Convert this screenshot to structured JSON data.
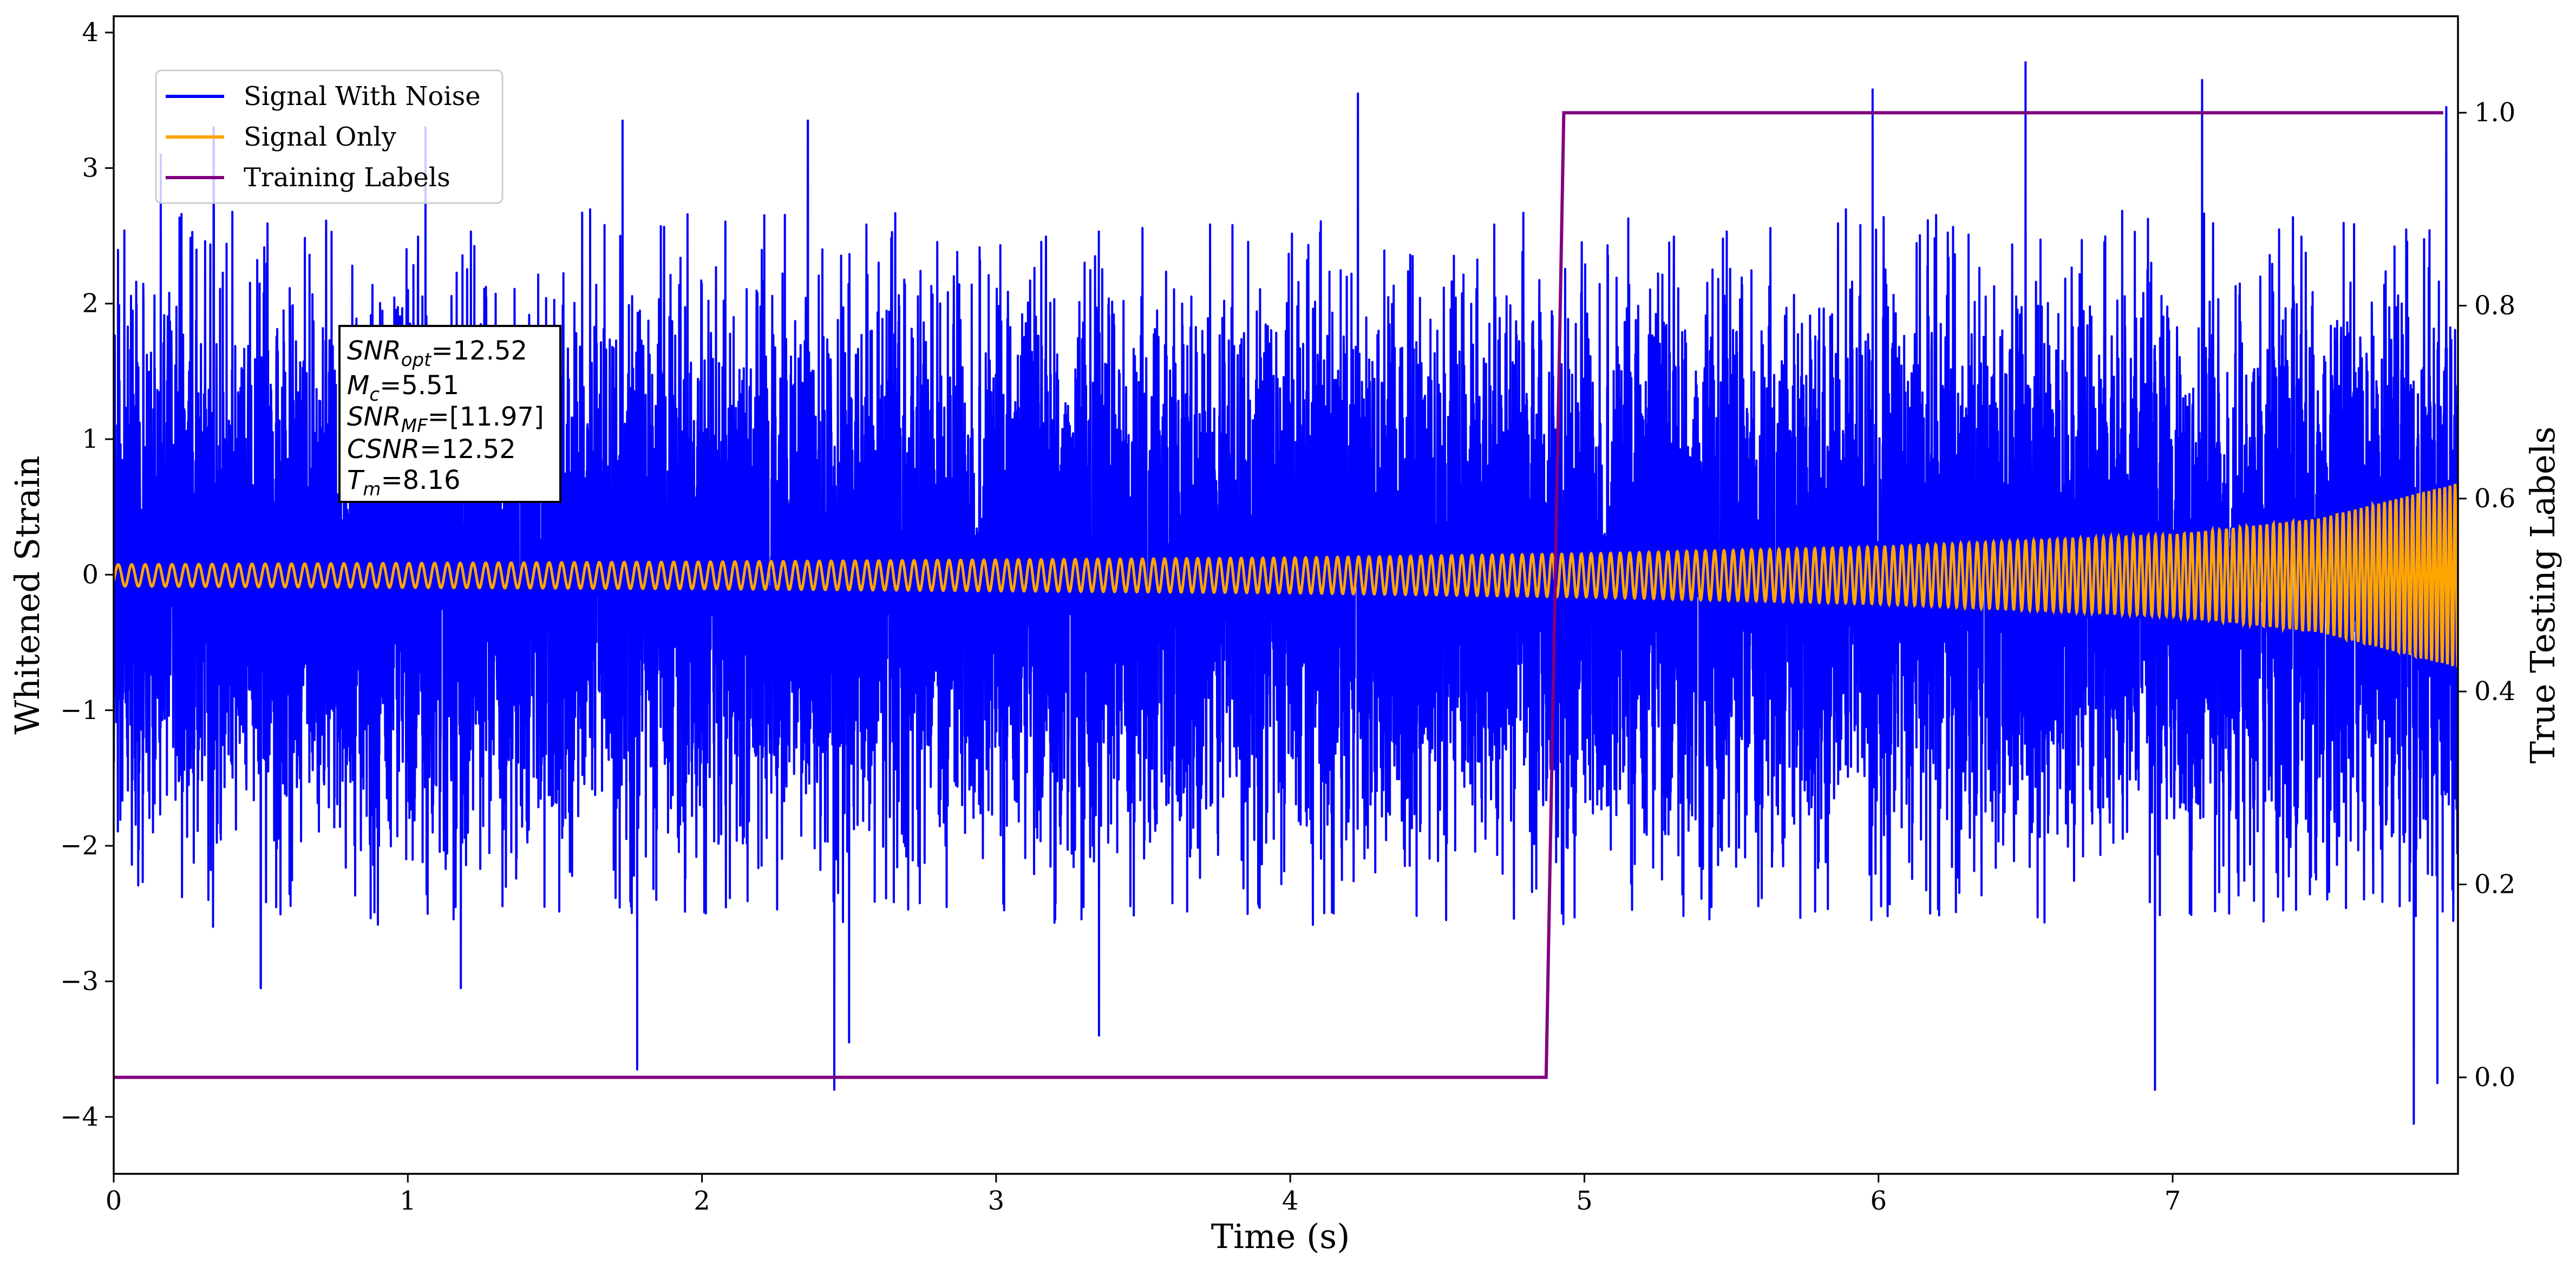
{
  "chart_data": {
    "type": "line",
    "x_axis": {
      "label": "Time (s)",
      "range": [
        0,
        7.97
      ],
      "ticks": [
        0,
        1,
        2,
        3,
        4,
        5,
        6,
        7
      ],
      "tick_labels": [
        "0",
        "1",
        "2",
        "3",
        "4",
        "5",
        "6",
        "7"
      ]
    },
    "y_axis_left": {
      "label": "Whitened Strain",
      "range": [
        -4.42,
        4.12
      ],
      "ticks": [
        -4,
        -3,
        -2,
        -1,
        0,
        1,
        2,
        3,
        4
      ],
      "tick_labels": [
        "−4",
        "−3",
        "−2",
        "−1",
        "0",
        "1",
        "2",
        "3",
        "4"
      ]
    },
    "y_axis_right": {
      "label": "True Testing Labels",
      "range": [
        -0.1,
        1.1
      ],
      "ticks": [
        0.0,
        0.2,
        0.4,
        0.6,
        0.8,
        1.0
      ],
      "tick_labels": [
        "0.0",
        "0.2",
        "0.4",
        "0.6",
        "0.8",
        "1.0"
      ]
    },
    "legend": {
      "placement": "upper-left",
      "entries": [
        {
          "name": "Signal With Noise",
          "color": "#0000ff"
        },
        {
          "name": "Signal Only",
          "color": "#ffa500"
        },
        {
          "name": "Training Labels",
          "color": "#800080"
        }
      ]
    },
    "series": [
      {
        "name": "Signal With Noise",
        "axis": "left",
        "color": "#0000ff",
        "description_of_envelope": "noise roughly within -2.4..2.6, peaks up to 3.78 at t=6.5 and down to -4.05 at t=7.82",
        "peaks": [
          {
            "x": 0.16,
            "y": 3.1
          },
          {
            "x": 0.34,
            "y": 3.3
          },
          {
            "x": 1.06,
            "y": 3.3
          },
          {
            "x": 1.73,
            "y": 3.35
          },
          {
            "x": 2.36,
            "y": 3.35
          },
          {
            "x": 4.23,
            "y": 3.55
          },
          {
            "x": 5.98,
            "y": 3.58
          },
          {
            "x": 6.5,
            "y": 3.78
          },
          {
            "x": 7.1,
            "y": 3.65
          },
          {
            "x": 7.93,
            "y": 3.45
          }
        ],
        "troughs": [
          {
            "x": 0.5,
            "y": -3.05
          },
          {
            "x": 1.18,
            "y": -3.05
          },
          {
            "x": 1.78,
            "y": -3.65
          },
          {
            "x": 2.45,
            "y": -3.8
          },
          {
            "x": 2.5,
            "y": -3.45
          },
          {
            "x": 3.35,
            "y": -3.4
          },
          {
            "x": 6.94,
            "y": -3.8
          },
          {
            "x": 7.82,
            "y": -4.05
          },
          {
            "x": 7.9,
            "y": -3.75
          }
        ]
      },
      {
        "name": "Signal Only",
        "axis": "left",
        "color": "#ffa500",
        "description_of_envelope": "chirp; amplitude grows from about 0.08 to 0.68 and frequency increases toward t=8",
        "amplitude_points": [
          {
            "x": 0,
            "y": 0.08
          },
          {
            "x": 2,
            "y": 0.1
          },
          {
            "x": 4,
            "y": 0.13
          },
          {
            "x": 5,
            "y": 0.16
          },
          {
            "x": 6,
            "y": 0.21
          },
          {
            "x": 7,
            "y": 0.3
          },
          {
            "x": 7.5,
            "y": 0.42
          },
          {
            "x": 7.97,
            "y": 0.68
          }
        ]
      },
      {
        "name": "Training Labels",
        "axis": "right",
        "color": "#800080",
        "points": [
          {
            "x": 0,
            "y": 0
          },
          {
            "x": 4.87,
            "y": 0
          },
          {
            "x": 4.93,
            "y": 1
          },
          {
            "x": 7.92,
            "y": 1
          }
        ]
      }
    ],
    "annotation": {
      "lines": [
        {
          "var": "SNR",
          "sub": "opt",
          "value": "=12.52"
        },
        {
          "var": "M",
          "sub": "c",
          "value": "=5.51"
        },
        {
          "var": "SNR",
          "sub": "MF",
          "value": "=[11.97]"
        },
        {
          "var": "CSNR",
          "sub": "",
          "value": "=12.52"
        },
        {
          "var": "T",
          "sub": "m",
          "value": "=8.16"
        }
      ]
    }
  }
}
